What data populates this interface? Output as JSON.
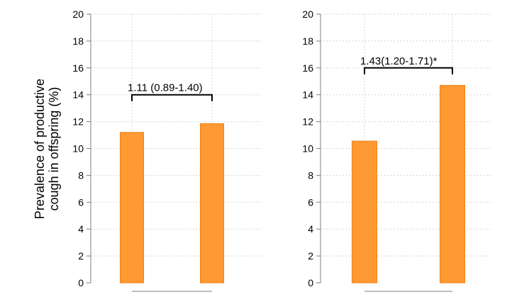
{
  "chart_data": [
    {
      "type": "bar",
      "panel": "left",
      "ylabel_lines": [
        "Prevalence of productive",
        "cough in offspring (%)"
      ],
      "ylim": [
        0,
        20
      ],
      "yticks": [
        "0",
        "2",
        "4",
        "6",
        "8",
        "10",
        "12",
        "14",
        "16",
        "18",
        "20"
      ],
      "grid": true,
      "values": [
        11.2,
        11.85
      ],
      "annotation": "1.11 (0.89-1.40)",
      "bracket_y": 14.0,
      "bar_color": "#ff9933",
      "bar_edge": "#f08010"
    },
    {
      "type": "bar",
      "panel": "right",
      "ylim": [
        0,
        20
      ],
      "yticks": [
        "0",
        "2",
        "4",
        "6",
        "8",
        "10",
        "12",
        "14",
        "16",
        "18",
        "20"
      ],
      "grid": true,
      "values": [
        10.55,
        14.7
      ],
      "annotation": "1.43(1.20-1.71)*",
      "bracket_y": 16.0,
      "bar_color": "#ff9933",
      "bar_edge": "#f08010"
    }
  ]
}
